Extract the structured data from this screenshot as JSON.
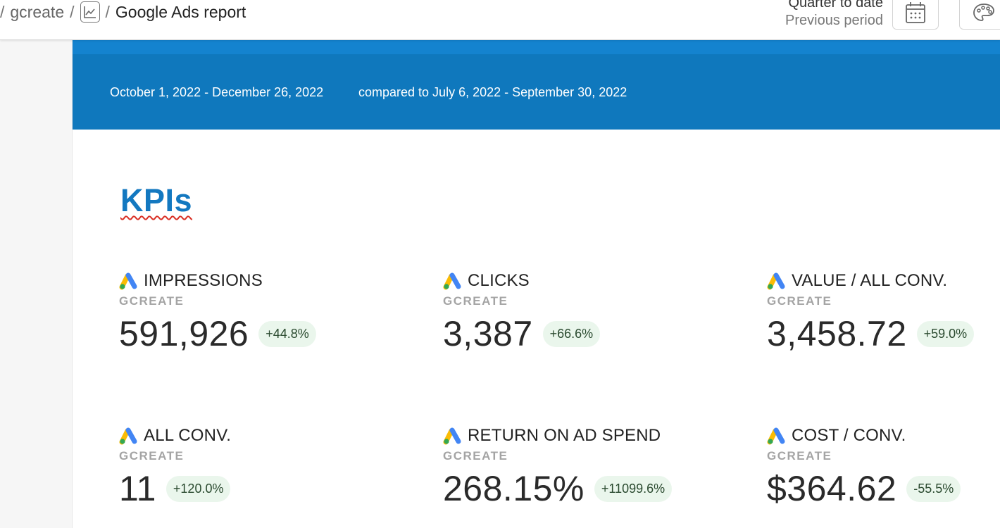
{
  "breadcrumb": {
    "separator": "/",
    "parent": "gcreate",
    "current": "Google Ads report",
    "icon": "chart-icon"
  },
  "period": {
    "selected": "Quarter to date",
    "comparison": "Previous period"
  },
  "toolbar": {
    "calendar_icon": "calendar-icon",
    "palette_icon": "palette-icon"
  },
  "banner": {
    "date_range": "October 1, 2022 - December 26, 2022",
    "compare_range": "compared to July 6, 2022 - September 30, 2022",
    "color": "#0f78bd"
  },
  "kpis": {
    "title": "KPIs",
    "items": [
      {
        "label": "IMPRESSIONS",
        "source": "GCREATE",
        "value": "591,926",
        "change": "+44.8%"
      },
      {
        "label": "CLICKS",
        "source": "GCREATE",
        "value": "3,387",
        "change": "+66.6%"
      },
      {
        "label": "VALUE / ALL CONV.",
        "source": "GCREATE",
        "value": "3,458.72",
        "change": "+59.0%"
      },
      {
        "label": "ALL CONV.",
        "source": "GCREATE",
        "value": "11",
        "change": "+120.0%"
      },
      {
        "label": "RETURN ON AD SPEND",
        "source": "GCREATE",
        "value": "268.15%",
        "change": "+11099.6%"
      },
      {
        "label": "COST / CONV.",
        "source": "GCREATE",
        "value": "$364.62",
        "change": "-55.5%"
      }
    ],
    "change_badge_color": "#eaf6ec",
    "accent_color": "#1378c0"
  }
}
